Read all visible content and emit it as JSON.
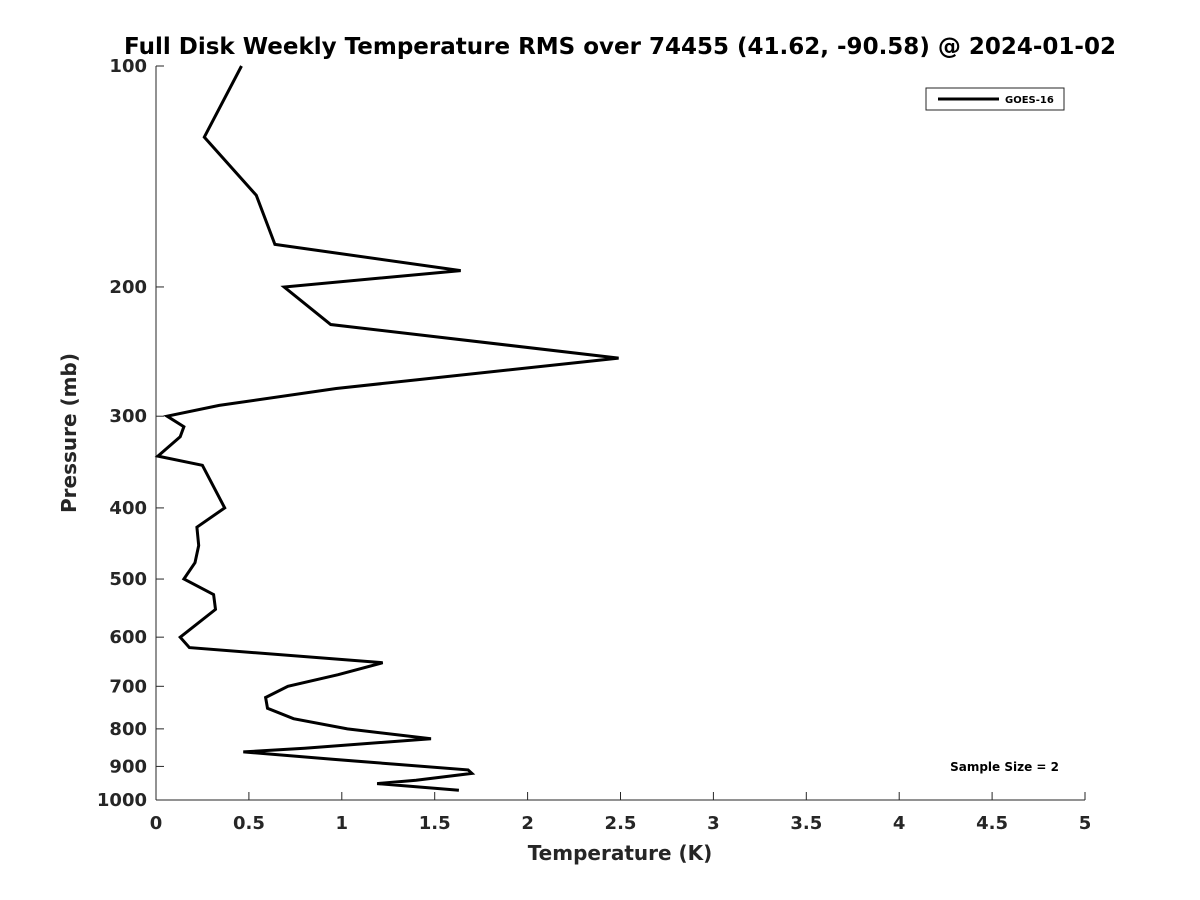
{
  "chart_data": {
    "type": "line",
    "title": "Full Disk Weekly Temperature RMS over 74455 (41.62, -90.58) @ 2024-01-02",
    "xlabel": "Temperature (K)",
    "ylabel": "Pressure (mb)",
    "xlim": [
      0,
      5
    ],
    "ylim": [
      100,
      1000
    ],
    "y_scale": "log",
    "y_reversed": true,
    "x_ticks": [
      "0",
      "0.5",
      "1",
      "1.5",
      "2",
      "2.5",
      "3",
      "3.5",
      "4",
      "4.5",
      "5"
    ],
    "y_ticks": [
      "100",
      "200",
      "300",
      "400",
      "500",
      "600",
      "700",
      "800",
      "900",
      "1000"
    ],
    "grid": false,
    "legend_position": "top-right",
    "annotation": "Sample Size = 2",
    "series": [
      {
        "name": "GOES-16",
        "color": "#000000",
        "points": [
          [
            0.46,
            100
          ],
          [
            0.26,
            125
          ],
          [
            0.54,
            150
          ],
          [
            0.64,
            175
          ],
          [
            1.64,
            190
          ],
          [
            0.69,
            200
          ],
          [
            0.94,
            225
          ],
          [
            2.49,
            250
          ],
          [
            0.97,
            275
          ],
          [
            0.34,
            290
          ],
          [
            0.06,
            300
          ],
          [
            0.15,
            310
          ],
          [
            0.13,
            320
          ],
          [
            0.01,
            340
          ],
          [
            0.25,
            350
          ],
          [
            0.37,
            400
          ],
          [
            0.22,
            425
          ],
          [
            0.23,
            450
          ],
          [
            0.21,
            475
          ],
          [
            0.15,
            500
          ],
          [
            0.31,
            525
          ],
          [
            0.32,
            550
          ],
          [
            0.13,
            600
          ],
          [
            0.18,
            620
          ],
          [
            1.22,
            650
          ],
          [
            0.98,
            675
          ],
          [
            0.71,
            700
          ],
          [
            0.59,
            725
          ],
          [
            0.6,
            750
          ],
          [
            0.74,
            775
          ],
          [
            1.03,
            800
          ],
          [
            1.48,
            825
          ],
          [
            0.8,
            850
          ],
          [
            0.47,
            860
          ],
          [
            0.95,
            880
          ],
          [
            1.68,
            910
          ],
          [
            1.7,
            920
          ],
          [
            1.4,
            940
          ],
          [
            1.19,
            950
          ],
          [
            1.63,
            970
          ]
        ]
      }
    ]
  }
}
